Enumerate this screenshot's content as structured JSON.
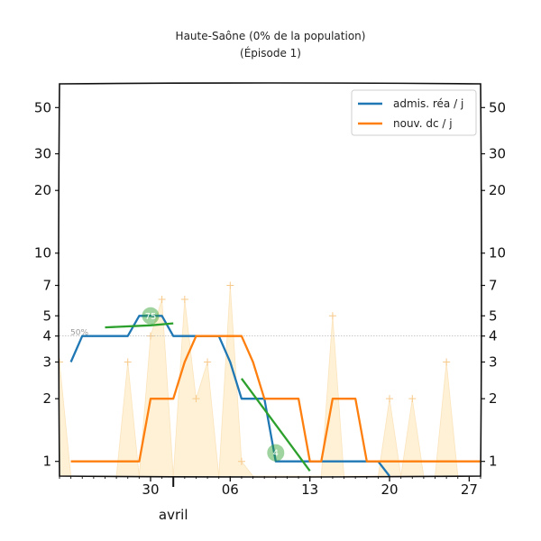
{
  "chart_data": {
    "type": "line",
    "title": "Haute-Saône (0% de la population)",
    "subtitle": "(Épisode 1)",
    "y_scale": "log",
    "ylim": [
      0.85,
      65
    ],
    "y_ticks": [
      1,
      2,
      3,
      4,
      5,
      7,
      10,
      20,
      30,
      50
    ],
    "y_tick_labels": [
      "1",
      "2",
      "3",
      "4",
      "5",
      "7",
      "10",
      "20",
      "30",
      "50"
    ],
    "xlim": [
      "2020-03-22",
      "2020-04-28"
    ],
    "x_ticks": [
      "2020-03-30",
      "2020-04-06",
      "2020-04-13",
      "2020-04-20",
      "2020-04-27"
    ],
    "x_tick_labels": [
      "30",
      "06",
      "13",
      "20",
      "27"
    ],
    "month_label": "avril",
    "reference_line": {
      "value": 4,
      "label": "50%"
    },
    "legend": {
      "position": "top-right",
      "entries": [
        "admis. réa / j",
        "nouv. dc / j"
      ]
    },
    "series": [
      {
        "name": "admis. réa / j",
        "color": "#1f77b4",
        "points": [
          [
            "2020-03-23",
            3
          ],
          [
            "2020-03-24",
            4
          ],
          [
            "2020-03-25",
            4
          ],
          [
            "2020-03-26",
            4
          ],
          [
            "2020-03-27",
            4
          ],
          [
            "2020-03-28",
            4
          ],
          [
            "2020-03-29",
            5
          ],
          [
            "2020-03-30",
            5
          ],
          [
            "2020-03-31",
            5
          ],
          [
            "2020-04-01",
            4
          ],
          [
            "2020-04-02",
            4
          ],
          [
            "2020-04-03",
            4
          ],
          [
            "2020-04-04",
            4
          ],
          [
            "2020-04-05",
            4
          ],
          [
            "2020-04-06",
            3
          ],
          [
            "2020-04-07",
            2
          ],
          [
            "2020-04-08",
            2
          ],
          [
            "2020-04-09",
            2
          ],
          [
            "2020-04-10",
            1
          ],
          [
            "2020-04-11",
            1
          ],
          [
            "2020-04-12",
            1
          ],
          [
            "2020-04-13",
            1
          ],
          [
            "2020-04-14",
            1
          ],
          [
            "2020-04-15",
            1
          ],
          [
            "2020-04-16",
            1
          ],
          [
            "2020-04-17",
            1
          ],
          [
            "2020-04-18",
            1
          ],
          [
            "2020-04-19",
            1
          ],
          [
            "2020-04-20",
            0.85
          ]
        ]
      },
      {
        "name": "nouv. dc / j",
        "color": "#ff7f0e",
        "points": [
          [
            "2020-03-23",
            1
          ],
          [
            "2020-03-24",
            1
          ],
          [
            "2020-03-25",
            1
          ],
          [
            "2020-03-26",
            1
          ],
          [
            "2020-03-27",
            1
          ],
          [
            "2020-03-28",
            1
          ],
          [
            "2020-03-29",
            1
          ],
          [
            "2020-03-30",
            2
          ],
          [
            "2020-03-31",
            2
          ],
          [
            "2020-04-01",
            2
          ],
          [
            "2020-04-02",
            3
          ],
          [
            "2020-04-03",
            4
          ],
          [
            "2020-04-04",
            4
          ],
          [
            "2020-04-05",
            4
          ],
          [
            "2020-04-06",
            4
          ],
          [
            "2020-04-07",
            4
          ],
          [
            "2020-04-08",
            3
          ],
          [
            "2020-04-09",
            2
          ],
          [
            "2020-04-10",
            2
          ],
          [
            "2020-04-11",
            2
          ],
          [
            "2020-04-12",
            2
          ],
          [
            "2020-04-13",
            1
          ],
          [
            "2020-04-14",
            1
          ],
          [
            "2020-04-15",
            2
          ],
          [
            "2020-04-16",
            2
          ],
          [
            "2020-04-17",
            2
          ],
          [
            "2020-04-18",
            1
          ],
          [
            "2020-04-19",
            1
          ],
          [
            "2020-04-20",
            1
          ],
          [
            "2020-04-21",
            1
          ],
          [
            "2020-04-22",
            1
          ],
          [
            "2020-04-23",
            1
          ],
          [
            "2020-04-24",
            1
          ],
          [
            "2020-04-25",
            1
          ],
          [
            "2020-04-26",
            1
          ],
          [
            "2020-04-27",
            1
          ],
          [
            "2020-04-28",
            1
          ]
        ]
      },
      {
        "color": "#fdecc8",
        "style": "daily-markers",
        "points": [
          [
            "2020-03-22",
            3
          ],
          [
            "2020-03-23",
            0.85
          ],
          [
            "2020-03-24",
            0.85
          ],
          [
            "2020-03-25",
            0.85
          ],
          [
            "2020-03-26",
            0.85
          ],
          [
            "2020-03-27",
            0.85
          ],
          [
            "2020-03-28",
            3
          ],
          [
            "2020-03-29",
            0.85
          ],
          [
            "2020-03-30",
            4
          ],
          [
            "2020-03-31",
            6
          ],
          [
            "2020-04-01",
            0.85
          ],
          [
            "2020-04-02",
            6
          ],
          [
            "2020-04-03",
            2
          ],
          [
            "2020-04-04",
            3
          ],
          [
            "2020-04-05",
            0.85
          ],
          [
            "2020-04-06",
            7
          ],
          [
            "2020-04-07",
            1
          ],
          [
            "2020-04-08",
            0.85
          ],
          [
            "2020-04-09",
            0.85
          ],
          [
            "2020-04-10",
            0.85
          ],
          [
            "2020-04-11",
            0.85
          ],
          [
            "2020-04-12",
            0.85
          ],
          [
            "2020-04-13",
            0.85
          ],
          [
            "2020-04-14",
            0.85
          ],
          [
            "2020-04-15",
            5
          ],
          [
            "2020-04-16",
            0.85
          ],
          [
            "2020-04-17",
            0.85
          ],
          [
            "2020-04-18",
            0.85
          ],
          [
            "2020-04-19",
            0.85
          ],
          [
            "2020-04-20",
            2
          ],
          [
            "2020-04-21",
            0.85
          ],
          [
            "2020-04-22",
            2
          ],
          [
            "2020-04-23",
            0.85
          ],
          [
            "2020-04-24",
            0.85
          ],
          [
            "2020-04-25",
            3
          ],
          [
            "2020-04-26",
            0.85
          ],
          [
            "2020-04-27",
            0.85
          ],
          [
            "2020-04-28",
            0.85
          ]
        ]
      },
      {
        "color": "#2ca02c",
        "style": "trend",
        "points": [
          [
            "2020-03-26",
            4.4
          ],
          [
            "2020-03-30",
            4.5
          ],
          [
            "2020-04-01",
            4.6
          ]
        ]
      },
      {
        "color": "#2ca02c",
        "style": "trend",
        "points": [
          [
            "2020-04-07",
            2.5
          ],
          [
            "2020-04-13",
            0.9
          ]
        ]
      }
    ],
    "annotations": [
      {
        "text": "75",
        "x": "2020-03-30",
        "y": 5.0,
        "color": "#2ca02c"
      },
      {
        "text": "4",
        "x": "2020-04-10",
        "y": 1.1,
        "color": "#2ca02c"
      }
    ]
  }
}
